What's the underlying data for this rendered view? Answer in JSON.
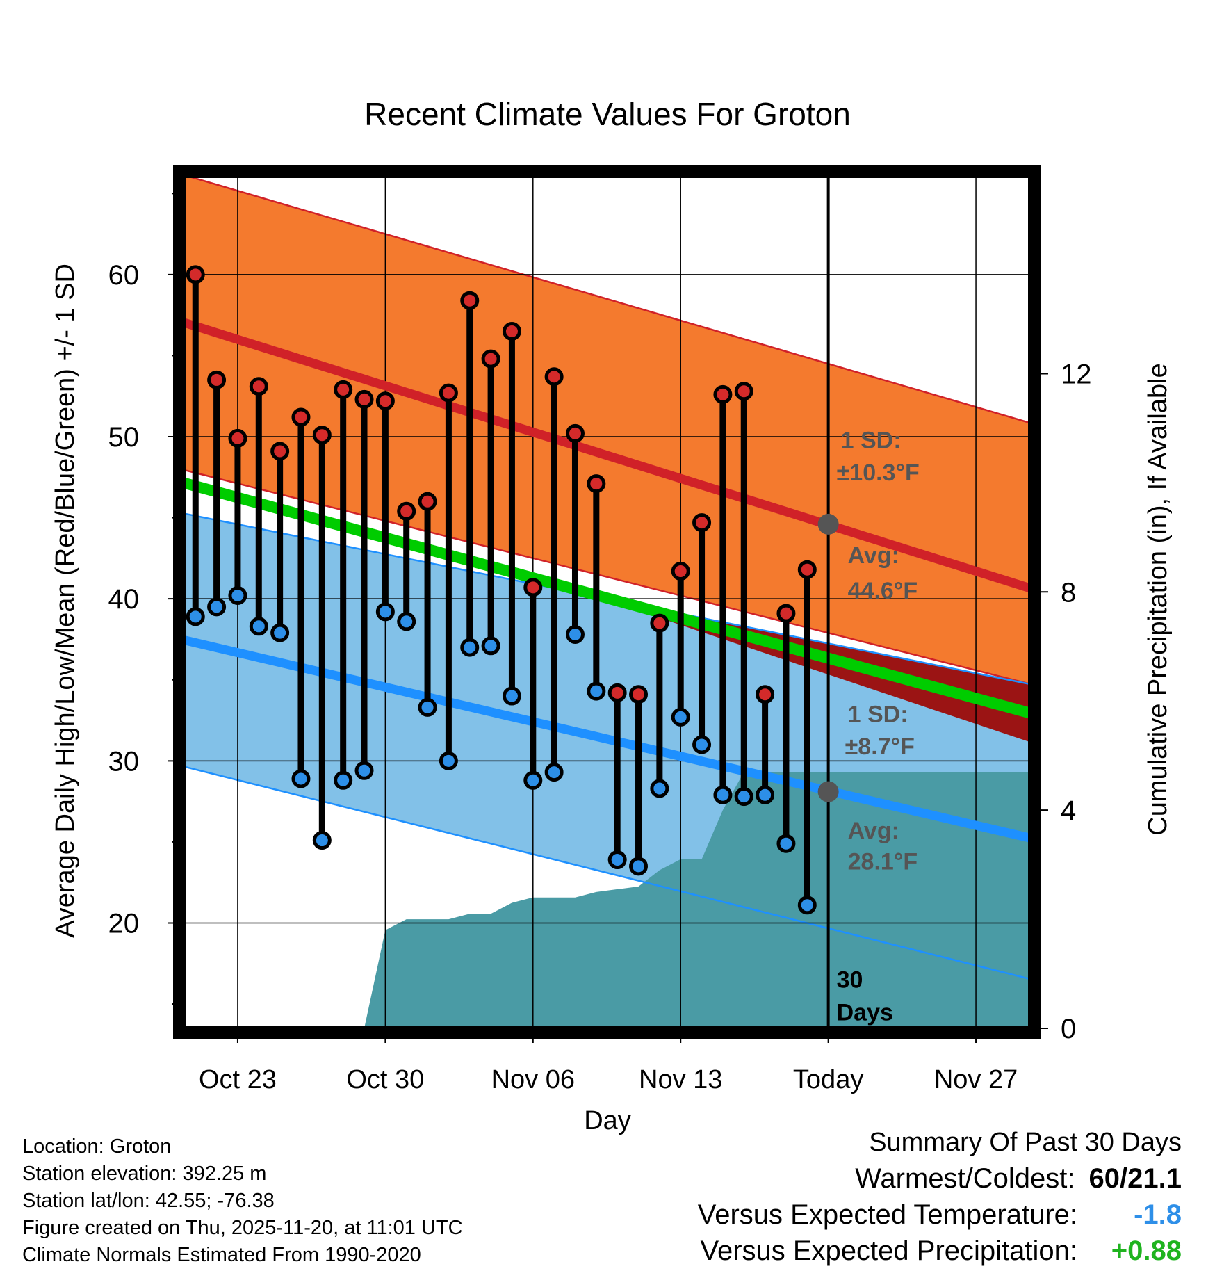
{
  "chart_data": {
    "type": "line",
    "title": "Recent Climate Values For Groton",
    "xlabel": "Day",
    "ylabel": "Average Daily High/Low/Mean (Red/Blue/Green) +/- 1 SD",
    "y2label": "Cumulative Precipitation (in), If Available",
    "ylim": [
      13.5,
      66
    ],
    "y_ticks": [
      20,
      30,
      40,
      50,
      60
    ],
    "y2lim": [
      0,
      15.6
    ],
    "y2_ticks": [
      0,
      4,
      8,
      12
    ],
    "x_ticks": [
      {
        "day": 3,
        "label": "Oct 23"
      },
      {
        "day": 10,
        "label": "Oct 30"
      },
      {
        "day": 17,
        "label": "Nov 06"
      },
      {
        "day": 24,
        "label": "Nov 13"
      },
      {
        "day": 31,
        "label": "Today"
      },
      {
        "day": 38,
        "label": "Nov 27"
      }
    ],
    "xlim": [
      0.3,
      40.7
    ],
    "normals": {
      "high_mean": [
        57.1,
        40.6
      ],
      "high_upper": [
        66.2,
        50.8
      ],
      "high_lower": [
        48.0,
        34.7
      ],
      "low_mean": [
        37.5,
        25.2
      ],
      "low_upper": [
        45.3,
        34.7
      ],
      "low_lower": [
        29.7,
        16.5
      ],
      "mean_line": [
        47.2,
        32.9
      ]
    },
    "daily_high": [
      60,
      53.5,
      49.9,
      53.1,
      49.1,
      51.2,
      50.1,
      52.9,
      52.3,
      52.2,
      45.4,
      46.0,
      52.7,
      58.4,
      54.8,
      56.5,
      40.7,
      53.7,
      50.2,
      47.1,
      34.2,
      34.1,
      38.5,
      41.7,
      44.7,
      52.6,
      52.8,
      34.1,
      39.1,
      41.8
    ],
    "daily_low": [
      38.9,
      39.5,
      40.2,
      38.3,
      37.9,
      28.9,
      25.1,
      28.8,
      29.4,
      39.2,
      38.6,
      33.3,
      30.0,
      37.0,
      37.1,
      34.0,
      28.8,
      29.3,
      37.8,
      34.3,
      23.9,
      23.5,
      28.3,
      32.7,
      31.0,
      27.9,
      27.8,
      27.9,
      24.9,
      21.1
    ],
    "precip_cumulative": [
      [
        9.0,
        0
      ],
      [
        10.0,
        1.8
      ],
      [
        11.0,
        2.0
      ],
      [
        12.0,
        2.0
      ],
      [
        13.0,
        2.0
      ],
      [
        14.0,
        2.1
      ],
      [
        15.0,
        2.1
      ],
      [
        16.0,
        2.3
      ],
      [
        17.0,
        2.4
      ],
      [
        18.0,
        2.4
      ],
      [
        19.0,
        2.4
      ],
      [
        20.0,
        2.5
      ],
      [
        21.0,
        2.55
      ],
      [
        22.0,
        2.6
      ],
      [
        23.0,
        2.9
      ],
      [
        24.0,
        3.1
      ],
      [
        25.0,
        3.1
      ],
      [
        26.0,
        4.0
      ],
      [
        27.0,
        4.7
      ],
      [
        28.0,
        4.7
      ],
      [
        29.0,
        4.7
      ],
      [
        30.0,
        4.7
      ],
      [
        31.0,
        4.7
      ],
      [
        40.7,
        4.7
      ]
    ],
    "annotations": {
      "high_sd": "1 SD:",
      "high_sd_value": "±10.3°F",
      "high_avg": "Avg:",
      "high_avg_value": "44.6°F",
      "high_avg_point": 44.6,
      "low_sd": "1 SD:",
      "low_sd_value": "±8.7°F",
      "low_avg": "Avg:",
      "low_avg_value": "28.1°F",
      "low_avg_point": 28.1,
      "days_label_1": "30",
      "days_label_2": "Days"
    },
    "colors": {
      "high_band": "#f47a2e",
      "high_line": "#d02128",
      "low_band": "#82c1e8",
      "low_line": "#1e90ff",
      "mean_line": "#00cc00",
      "overlap": "#9b1414",
      "precip": "#4a9ba5",
      "high_dot": "#d42a2a",
      "low_dot": "#2d8fe8",
      "annotation": "#555555"
    }
  },
  "footer": {
    "location": "Location: Groton",
    "elevation": "Station elevation: 392.25 m",
    "latlon": "Station lat/lon: 42.55; -76.38",
    "created": "Figure created on Thu, 2025-11-20, at 11:01 UTC",
    "normals": "Climate Normals Estimated From 1990-2020"
  },
  "summary": {
    "title": "Summary Of Past 30 Days",
    "warmest_label": "Warmest/Coldest:",
    "warmest_value": "60/21.1",
    "temp_label": "Versus Expected Temperature:",
    "temp_value": "-1.8",
    "temp_color": "#2e8fe8",
    "precip_label": "Versus Expected Precipitation:",
    "precip_value": "+0.88",
    "precip_color": "#1fb31f"
  }
}
